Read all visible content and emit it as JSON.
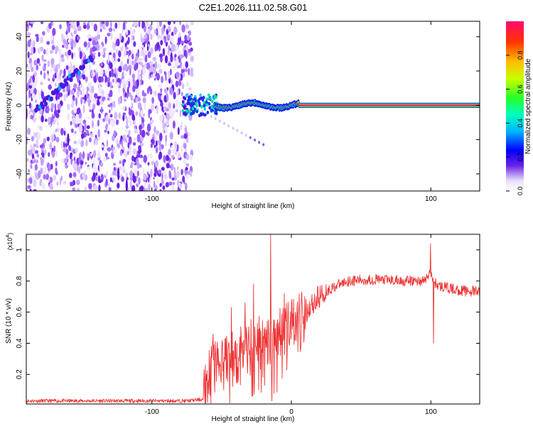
{
  "title": "C2E1.2026.111.02.58.G01",
  "chart_data": [
    {
      "type": "heatmap",
      "xlabel": "Height of straight line (km)",
      "ylabel": "Frequency (Hz)",
      "xlim": [
        -190,
        135
      ],
      "ylim": [
        -50,
        49
      ],
      "xticks": [
        -100,
        0,
        100
      ],
      "xtick_labels": [
        "-100",
        "",
        "100"
      ],
      "yticks": [
        -40,
        -20,
        0,
        20,
        40
      ],
      "ytick_labels": [
        "-40",
        "-20",
        "0",
        "20",
        "40"
      ],
      "colorbar": {
        "label": "Normalized spectral amplitude",
        "range": [
          0,
          1
        ],
        "ticks": [
          0,
          0.2,
          0.4,
          0.6,
          0.8
        ],
        "tick_labels": [
          "0.0",
          "0.2",
          "0.4",
          "0.6",
          "0.8"
        ]
      },
      "features": {
        "scatter_region_x": [
          -190,
          -75
        ],
        "diagonal_trace": {
          "x": [
            -183,
            -143
          ],
          "y": [
            -3,
            27
          ]
        },
        "main_trace": {
          "x": [
            -75,
            135
          ],
          "y": [
            0,
            0
          ]
        },
        "secondary_trace": {
          "x": [
            -70,
            -20
          ],
          "y": [
            -1,
            -23
          ]
        }
      }
    },
    {
      "type": "line",
      "xlabel": "Height of straight line (km)",
      "ylabel": "SNR (10 * v/v)",
      "y_multiplier": "(x10",
      "y_multiplier_exp": "4",
      "y_multiplier_close": ")",
      "xlim": [
        -190,
        135
      ],
      "ylim": [
        0.01,
        1.1
      ],
      "xticks": [
        -100,
        0,
        100
      ],
      "xtick_labels": [
        "-100",
        "0",
        "100"
      ],
      "yticks": [
        0.2,
        0.4,
        0.6,
        0.8,
        1
      ],
      "ytick_labels": [
        "0.2",
        "0.4",
        "0.6",
        "0.8",
        "1"
      ],
      "series": [
        {
          "name": "SNR",
          "color": "#ee3333",
          "x": [
            -190,
            -150,
            -100,
            -75,
            -63,
            -60,
            -55,
            -50,
            -40,
            -30,
            -20,
            -10,
            0,
            10,
            20,
            30,
            40,
            60,
            80,
            95,
            100,
            102,
            105,
            110,
            120,
            135
          ],
          "y": [
            0.03,
            0.03,
            0.03,
            0.03,
            0.04,
            0.2,
            0.25,
            0.3,
            0.3,
            0.38,
            0.42,
            0.45,
            0.5,
            0.6,
            0.7,
            0.76,
            0.8,
            0.81,
            0.8,
            0.8,
            0.85,
            0.8,
            0.77,
            0.76,
            0.74,
            0.73
          ],
          "spikes": [
            {
              "x": -60,
              "y": 0.02
            },
            {
              "x": -56,
              "y": 0.46
            },
            {
              "x": -43,
              "y": 0.63
            },
            {
              "x": -33,
              "y": 0.66
            },
            {
              "x": -27,
              "y": 0.78
            },
            {
              "x": -15,
              "y": 1.1
            },
            {
              "x": -14,
              "y": 0.03
            },
            {
              "x": -5,
              "y": 0.72
            },
            {
              "x": 100,
              "y": 1.04
            },
            {
              "x": 102,
              "y": 0.4
            }
          ]
        }
      ]
    }
  ]
}
